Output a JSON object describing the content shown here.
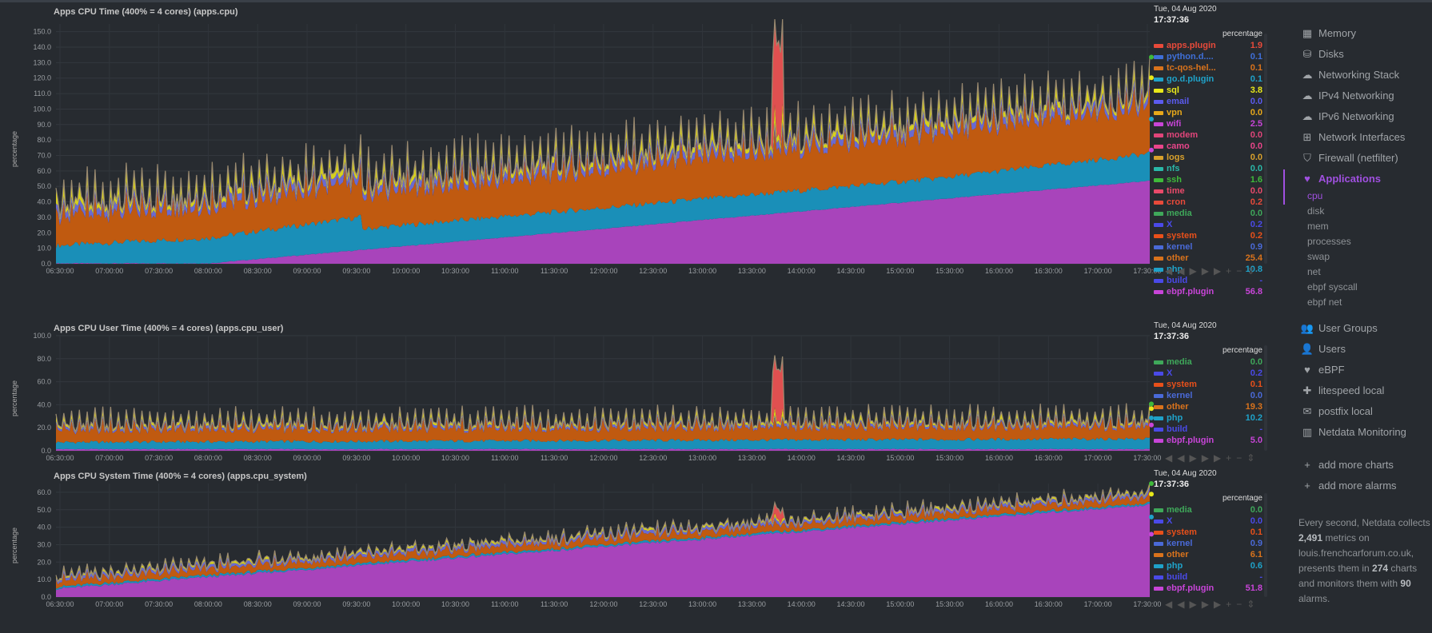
{
  "charts": [
    {
      "title": "Apps CPU Time (400% = 4 cores) (apps.cpu)",
      "ylabel": "percentage",
      "y_max": 155,
      "y_ticks": [
        "0.0",
        "10.0",
        "20.0",
        "30.0",
        "40.0",
        "50.0",
        "60.0",
        "70.0",
        "80.0",
        "90.0",
        "100.0",
        "110.0",
        "120.0",
        "130.0",
        "140.0",
        "150.0"
      ],
      "date": "Tue, 04 Aug 2020",
      "time": "17:37:36",
      "units": "percentage",
      "legend": [
        {
          "name": "apps.plugin",
          "value": "1.9",
          "color": "#e84a3a"
        },
        {
          "name": "python.d....",
          "value": "0.1",
          "color": "#3f6fd8"
        },
        {
          "name": "tc-qos-hel...",
          "value": "0.1",
          "color": "#d9731c"
        },
        {
          "name": "go.d.plugin",
          "value": "0.1",
          "color": "#1fa2c9"
        },
        {
          "name": "sql",
          "value": "3.8",
          "color": "#e8e81a"
        },
        {
          "name": "email",
          "value": "0.0",
          "color": "#5b5bf0"
        },
        {
          "name": "vpn",
          "value": "0.0",
          "color": "#e8a81a"
        },
        {
          "name": "wifi",
          "value": "2.5",
          "color": "#c845d8"
        },
        {
          "name": "modem",
          "value": "0.0",
          "color": "#e0457a"
        },
        {
          "name": "camo",
          "value": "0.0",
          "color": "#e8458a"
        },
        {
          "name": "logs",
          "value": "0.0",
          "color": "#d9a12c"
        },
        {
          "name": "nfs",
          "value": "0.0",
          "color": "#2ab8a8"
        },
        {
          "name": "ssh",
          "value": "1.6",
          "color": "#3fba3a"
        },
        {
          "name": "time",
          "value": "0.0",
          "color": "#e84a6a"
        },
        {
          "name": "cron",
          "value": "0.2",
          "color": "#e84a3a"
        },
        {
          "name": "media",
          "value": "0.0",
          "color": "#3fa85a"
        },
        {
          "name": "X",
          "value": "0.2",
          "color": "#4a4ae8"
        },
        {
          "name": "system",
          "value": "0.2",
          "color": "#e8501a"
        },
        {
          "name": "kernel",
          "value": "0.9",
          "color": "#4a6ad8"
        },
        {
          "name": "other",
          "value": "25.4",
          "color": "#d9731c"
        },
        {
          "name": "php",
          "value": "10.8",
          "color": "#1fa2c9"
        },
        {
          "name": "build",
          "value": "-",
          "color": "#4a4ae8"
        },
        {
          "name": "ebpf.plugin",
          "value": "56.8",
          "color": "#c845d8"
        }
      ]
    },
    {
      "title": "Apps CPU User Time (400% = 4 cores) (apps.cpu_user)",
      "ylabel": "percentage",
      "y_max": 100,
      "y_ticks": [
        "0.0",
        "20.0",
        "40.0",
        "60.0",
        "80.0",
        "100.0"
      ],
      "date": "Tue, 04 Aug 2020",
      "time": "17:37:36",
      "units": "percentage",
      "legend": [
        {
          "name": "media",
          "value": "0.0",
          "color": "#3fa85a"
        },
        {
          "name": "X",
          "value": "0.2",
          "color": "#4a4ae8"
        },
        {
          "name": "system",
          "value": "0.1",
          "color": "#e8501a"
        },
        {
          "name": "kernel",
          "value": "0.0",
          "color": "#4a6ad8"
        },
        {
          "name": "other",
          "value": "19.3",
          "color": "#d9731c"
        },
        {
          "name": "php",
          "value": "10.2",
          "color": "#1fa2c9"
        },
        {
          "name": "build",
          "value": "-",
          "color": "#4a4ae8"
        },
        {
          "name": "ebpf.plugin",
          "value": "5.0",
          "color": "#c845d8"
        }
      ]
    },
    {
      "title": "Apps CPU System Time (400% = 4 cores) (apps.cpu_system)",
      "ylabel": "percentage",
      "y_max": 65,
      "y_ticks": [
        "0.0",
        "10.0",
        "20.0",
        "30.0",
        "40.0",
        "50.0",
        "60.0"
      ],
      "date": "Tue, 04 Aug 2020",
      "time": "17:37:36",
      "units": "percentage",
      "legend": [
        {
          "name": "media",
          "value": "0.0",
          "color": "#3fa85a"
        },
        {
          "name": "X",
          "value": "0.0",
          "color": "#4a4ae8"
        },
        {
          "name": "system",
          "value": "0.1",
          "color": "#e8501a"
        },
        {
          "name": "kernel",
          "value": "0.9",
          "color": "#4a6ad8"
        },
        {
          "name": "other",
          "value": "6.1",
          "color": "#d9731c"
        },
        {
          "name": "php",
          "value": "0.6",
          "color": "#1fa2c9"
        },
        {
          "name": "build",
          "value": "-",
          "color": "#4a4ae8"
        },
        {
          "name": "ebpf.plugin",
          "value": "51.8",
          "color": "#c845d8"
        }
      ]
    }
  ],
  "x_ticks": [
    "06:30:00",
    "07:00:00",
    "07:30:00",
    "08:00:00",
    "08:30:00",
    "09:00:00",
    "09:30:00",
    "10:00:00",
    "10:30:00",
    "11:00:00",
    "11:30:00",
    "12:00:00",
    "12:30:00",
    "13:00:00",
    "13:30:00",
    "14:00:00",
    "14:30:00",
    "15:00:00",
    "15:30:00",
    "16:00:00",
    "16:30:00",
    "17:00:00",
    "17:30:00"
  ],
  "sidebar": {
    "items": [
      {
        "label": "Memory",
        "icon": "memory-icon"
      },
      {
        "label": "Disks",
        "icon": "disk-icon"
      },
      {
        "label": "Networking Stack",
        "icon": "cloud-icon"
      },
      {
        "label": "IPv4 Networking",
        "icon": "cloud-icon"
      },
      {
        "label": "IPv6 Networking",
        "icon": "cloud-icon"
      },
      {
        "label": "Network Interfaces",
        "icon": "network-icon"
      },
      {
        "label": "Firewall (netfilter)",
        "icon": "shield-icon"
      },
      {
        "label": "Applications",
        "icon": "heartbeat-icon"
      }
    ],
    "subitems": [
      "cpu",
      "disk",
      "mem",
      "processes",
      "swap",
      "net",
      "ebpf syscall",
      "ebpf net"
    ],
    "items2": [
      {
        "label": "User Groups",
        "icon": "users-icon"
      },
      {
        "label": "Users",
        "icon": "user-icon"
      },
      {
        "label": "eBPF",
        "icon": "heartbeat-icon"
      },
      {
        "label": "litespeed local",
        "icon": "puzzle-icon"
      },
      {
        "label": "postfix local",
        "icon": "envelope-icon"
      },
      {
        "label": "Netdata Monitoring",
        "icon": "chart-icon"
      }
    ],
    "actions": [
      "add more charts",
      "add more alarms"
    ],
    "footer": {
      "line1": "Every second, Netdata collects ",
      "metrics": "2,491",
      "line2": " metrics on louis.frenchcarforum.co.uk, presents them in ",
      "charts": "274",
      "line3": " charts and monitors them with ",
      "alarms": "90",
      "line4": " alarms."
    }
  },
  "colors": {
    "ebpf": "#a844bb",
    "php": "#1a8fb8",
    "other": "#c05a10",
    "sql": "#d6d01c",
    "kernel": "#6a6ad0",
    "system": "#e0501a",
    "media": "#3a9a5a",
    "peak": "#e05050",
    "top": "#9a8a70"
  }
}
